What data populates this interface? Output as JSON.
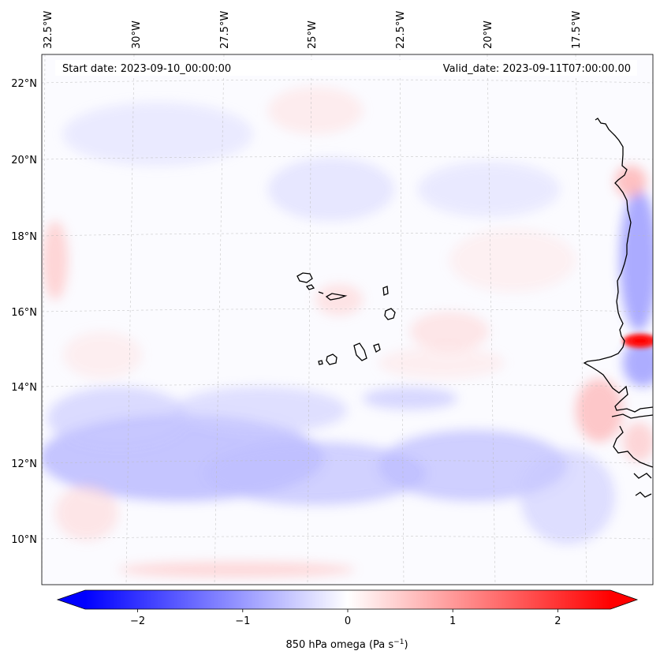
{
  "map": {
    "header_left": "Start date: 2023-09-10_00:00:00",
    "header_right": "Valid_date: 2023-09-11T07:00:00.00",
    "lon_labels": [
      "32.5°W",
      "30°W",
      "27.5°W",
      "25°W",
      "22.5°W",
      "20°W",
      "17.5°W"
    ],
    "lat_labels": [
      "22°N",
      "20°N",
      "18°N",
      "16°N",
      "14°N",
      "12°N",
      "10°N"
    ],
    "field": "850 hPa omega",
    "colors": {
      "negative": "#0000ff",
      "zero": "#ffffff",
      "positive": "#ff0000",
      "coast": "#000000",
      "grid": "#bbbbbb"
    }
  },
  "colorbar": {
    "min": -2.5,
    "max": 2.5,
    "ticks": [
      -2,
      -1,
      0,
      1,
      2
    ],
    "tick_labels": [
      "−2",
      "−1",
      "0",
      "1",
      "2"
    ],
    "label_main": "850 hPa omega (Pa s",
    "label_exp": "−1",
    "label_close": ")",
    "extend": "both"
  }
}
